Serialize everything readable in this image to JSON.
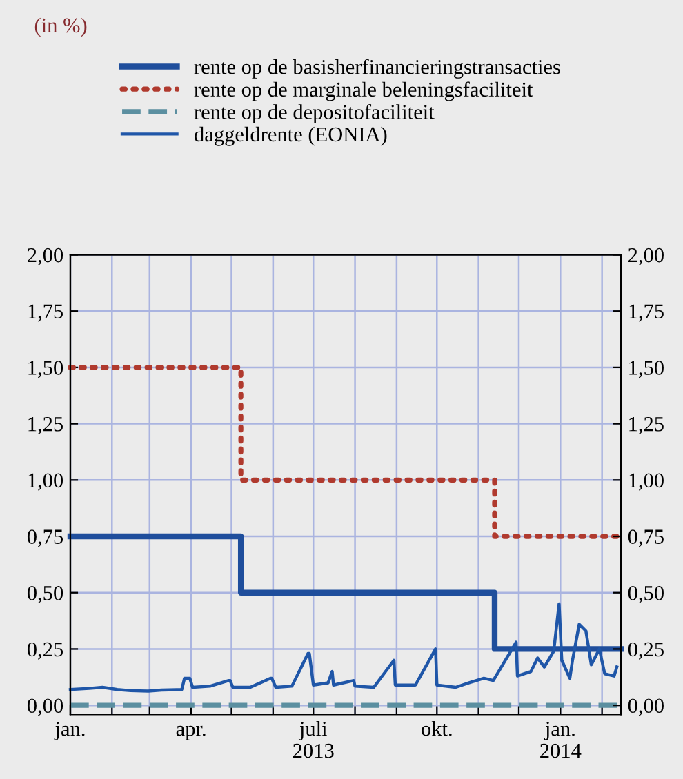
{
  "chart_data": {
    "type": "step",
    "subtitle": "(in %)",
    "series": [
      {
        "name": "rente op de basisherfinancieringstransacties",
        "color": "#1f4e9c",
        "line_style": "solid",
        "x": [
          "2013-01-01",
          "2013-05-08",
          "2013-11-13",
          "2014-02-15"
        ],
        "values": [
          0.75,
          0.5,
          0.25,
          0.25
        ]
      },
      {
        "name": "rente op de marginale beleningsfaciliteit",
        "color": "#b03a2e",
        "line_style": "dotted",
        "x": [
          "2013-01-01",
          "2013-05-08",
          "2013-11-13",
          "2014-02-15"
        ],
        "values": [
          1.5,
          1.0,
          0.75,
          0.75
        ]
      },
      {
        "name": "rente op de depositofaciliteit",
        "color": "#5b8fa0",
        "line_style": "dashed",
        "x": [
          "2013-01-01",
          "2014-02-15"
        ],
        "values": [
          0.0,
          0.0
        ]
      },
      {
        "name": "daggeldrente (EONIA)",
        "type": "line",
        "color": "#1f56a8",
        "line_style": "solid",
        "x": [
          "2013-01-01",
          "2013-01-15",
          "2013-01-25",
          "2013-02-05",
          "2013-02-15",
          "2013-02-28",
          "2013-03-10",
          "2013-03-25",
          "2013-03-27",
          "2013-03-31",
          "2013-04-02",
          "2013-04-15",
          "2013-04-29",
          "2013-04-30",
          "2013-05-02",
          "2013-05-15",
          "2013-05-30",
          "2013-05-31",
          "2013-06-03",
          "2013-06-15",
          "2013-06-27",
          "2013-06-28",
          "2013-07-01",
          "2013-07-12",
          "2013-07-15",
          "2013-07-16",
          "2013-07-31",
          "2013-08-01",
          "2013-08-15",
          "2013-08-30",
          "2013-08-31",
          "2013-09-15",
          "2013-09-30",
          "2013-10-01",
          "2013-10-15",
          "2013-10-25",
          "2013-11-05",
          "2013-11-12",
          "2013-11-29",
          "2013-11-30",
          "2013-12-10",
          "2013-12-15",
          "2013-12-20",
          "2013-12-27",
          "2013-12-31",
          "2014-01-02",
          "2014-01-08",
          "2014-01-10",
          "2014-01-15",
          "2014-01-20",
          "2014-01-24",
          "2014-01-30",
          "2014-02-03",
          "2014-02-10",
          "2014-02-12"
        ],
        "values": [
          0.07,
          0.075,
          0.08,
          0.07,
          0.065,
          0.063,
          0.068,
          0.07,
          0.12,
          0.12,
          0.08,
          0.085,
          0.11,
          0.11,
          0.08,
          0.08,
          0.12,
          0.12,
          0.08,
          0.085,
          0.23,
          0.23,
          0.09,
          0.1,
          0.15,
          0.09,
          0.11,
          0.085,
          0.08,
          0.2,
          0.09,
          0.09,
          0.25,
          0.09,
          0.08,
          0.1,
          0.12,
          0.11,
          0.28,
          0.13,
          0.15,
          0.21,
          0.17,
          0.24,
          0.45,
          0.2,
          0.12,
          0.2,
          0.36,
          0.33,
          0.18,
          0.25,
          0.14,
          0.13,
          0.17
        ]
      }
    ],
    "xlim": [
      "2013-01-01",
      "2014-02-15"
    ],
    "xticks": [
      {
        "value": "2013-01-01",
        "label": "jan."
      },
      {
        "value": "2013-02-01",
        "label": null
      },
      {
        "value": "2013-03-01",
        "label": null
      },
      {
        "value": "2013-04-01",
        "label": "apr."
      },
      {
        "value": "2013-05-01",
        "label": null
      },
      {
        "value": "2013-06-01",
        "label": null
      },
      {
        "value": "2013-07-01",
        "label": "juli\n2013"
      },
      {
        "value": "2013-08-01",
        "label": null
      },
      {
        "value": "2013-09-01",
        "label": null
      },
      {
        "value": "2013-10-01",
        "label": "okt."
      },
      {
        "value": "2013-11-01",
        "label": null
      },
      {
        "value": "2013-12-01",
        "label": null
      },
      {
        "value": "2014-01-01",
        "label": "jan.\n2014"
      },
      {
        "value": "2014-02-01",
        "label": null
      }
    ],
    "ylim": [
      -0.04,
      2.0
    ],
    "yticks": [
      {
        "value": 0,
        "label": "0,00"
      },
      {
        "value": 0.25,
        "label": "0,25"
      },
      {
        "value": 0.5,
        "label": "0,50"
      },
      {
        "value": 0.75,
        "label": "0,75"
      },
      {
        "value": 1.0,
        "label": "1,00"
      },
      {
        "value": 1.25,
        "label": "1,25"
      },
      {
        "value": 1.5,
        "label": "1,50"
      },
      {
        "value": 1.75,
        "label": "1,75"
      },
      {
        "value": 2.0,
        "label": "2,00"
      }
    ],
    "y2lim": [
      -0.04,
      2.0
    ],
    "y2ticks": [
      {
        "value": 0,
        "label": "0,00"
      },
      {
        "value": 0.25,
        "label": "0,25"
      },
      {
        "value": 0.5,
        "label": "0,50"
      },
      {
        "value": 0.75,
        "label": "0,75"
      },
      {
        "value": 1.0,
        "label": "1,00"
      },
      {
        "value": 1.25,
        "label": "1,25"
      },
      {
        "value": 1.5,
        "label": "1,50"
      },
      {
        "value": 1.75,
        "label": "1,75"
      },
      {
        "value": 2.0,
        "label": "2,00"
      }
    ],
    "grid": true,
    "legend": "top"
  }
}
